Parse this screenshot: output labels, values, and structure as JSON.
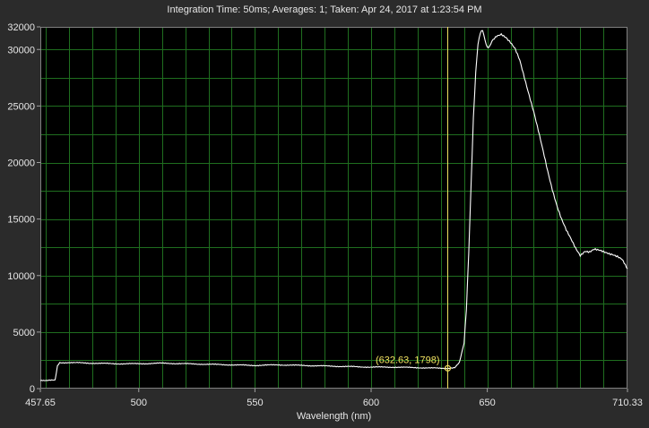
{
  "title": "Integration Time: 50ms;  Averages: 1;  Taken: Apr 24, 2017 at 1:23:54 PM",
  "colors": {
    "background": "#2b2b2b",
    "plot_background": "#000000",
    "grid": "#1f6e1f",
    "trace": "#ffffff",
    "cursor": "#f0e060"
  },
  "chart_data": {
    "type": "line",
    "xlabel": "Wavelength (nm)",
    "ylabel": "",
    "xlim": [
      457.65,
      710.33
    ],
    "ylim": [
      0,
      32000
    ],
    "x_ticks": [
      {
        "value": 457.65,
        "label": "457.65"
      },
      {
        "value": 500,
        "label": "500"
      },
      {
        "value": 550,
        "label": "550"
      },
      {
        "value": 600,
        "label": "600"
      },
      {
        "value": 650,
        "label": "650"
      },
      {
        "value": 710.33,
        "label": "710.33"
      }
    ],
    "y_ticks": [
      {
        "value": 0,
        "label": "0"
      },
      {
        "value": 5000,
        "label": "5000"
      },
      {
        "value": 10000,
        "label": "10000"
      },
      {
        "value": 15000,
        "label": "15000"
      },
      {
        "value": 20000,
        "label": "20000"
      },
      {
        "value": 25000,
        "label": "25000"
      },
      {
        "value": 30000,
        "label": "30000"
      },
      {
        "value": 32000,
        "label": "32000"
      }
    ],
    "grid": true,
    "grid_x_step": 10,
    "grid_y_step": 2500,
    "series": [
      {
        "x": [
          457.65,
          460,
          464,
          465,
          466,
          470,
          480,
          490,
          500,
          510,
          520,
          530,
          540,
          550,
          560,
          570,
          580,
          590,
          600,
          610,
          620,
          630,
          633,
          636,
          638,
          640,
          641,
          642,
          643,
          644,
          645,
          646,
          647,
          648,
          649,
          650,
          651,
          652,
          654,
          656,
          658,
          660,
          662,
          664,
          666,
          668,
          670,
          672,
          674,
          676,
          678,
          680,
          682,
          684,
          686,
          688,
          690,
          692,
          694,
          696,
          698,
          700,
          702,
          704,
          706,
          708,
          710.33
        ],
        "y": [
          700,
          700,
          750,
          2000,
          2300,
          2300,
          2250,
          2200,
          2200,
          2250,
          2200,
          2150,
          2100,
          2050,
          2100,
          2050,
          2000,
          1950,
          1900,
          1900,
          1850,
          1800,
          1800,
          1850,
          2300,
          4000,
          7000,
          12000,
          18000,
          24000,
          28000,
          30500,
          31500,
          31700,
          30800,
          30100,
          30200,
          30700,
          31200,
          31400,
          31100,
          30600,
          30000,
          29000,
          27500,
          26000,
          24500,
          22800,
          21000,
          19200,
          17600,
          16200,
          15000,
          14000,
          13200,
          12400,
          11800,
          12200,
          12100,
          12300,
          12200,
          12100,
          12000,
          11900,
          11700,
          11400,
          10600
        ]
      }
    ],
    "cursor": {
      "x": 632.63,
      "y": 1798,
      "label": "(632.63, 1798)"
    }
  }
}
